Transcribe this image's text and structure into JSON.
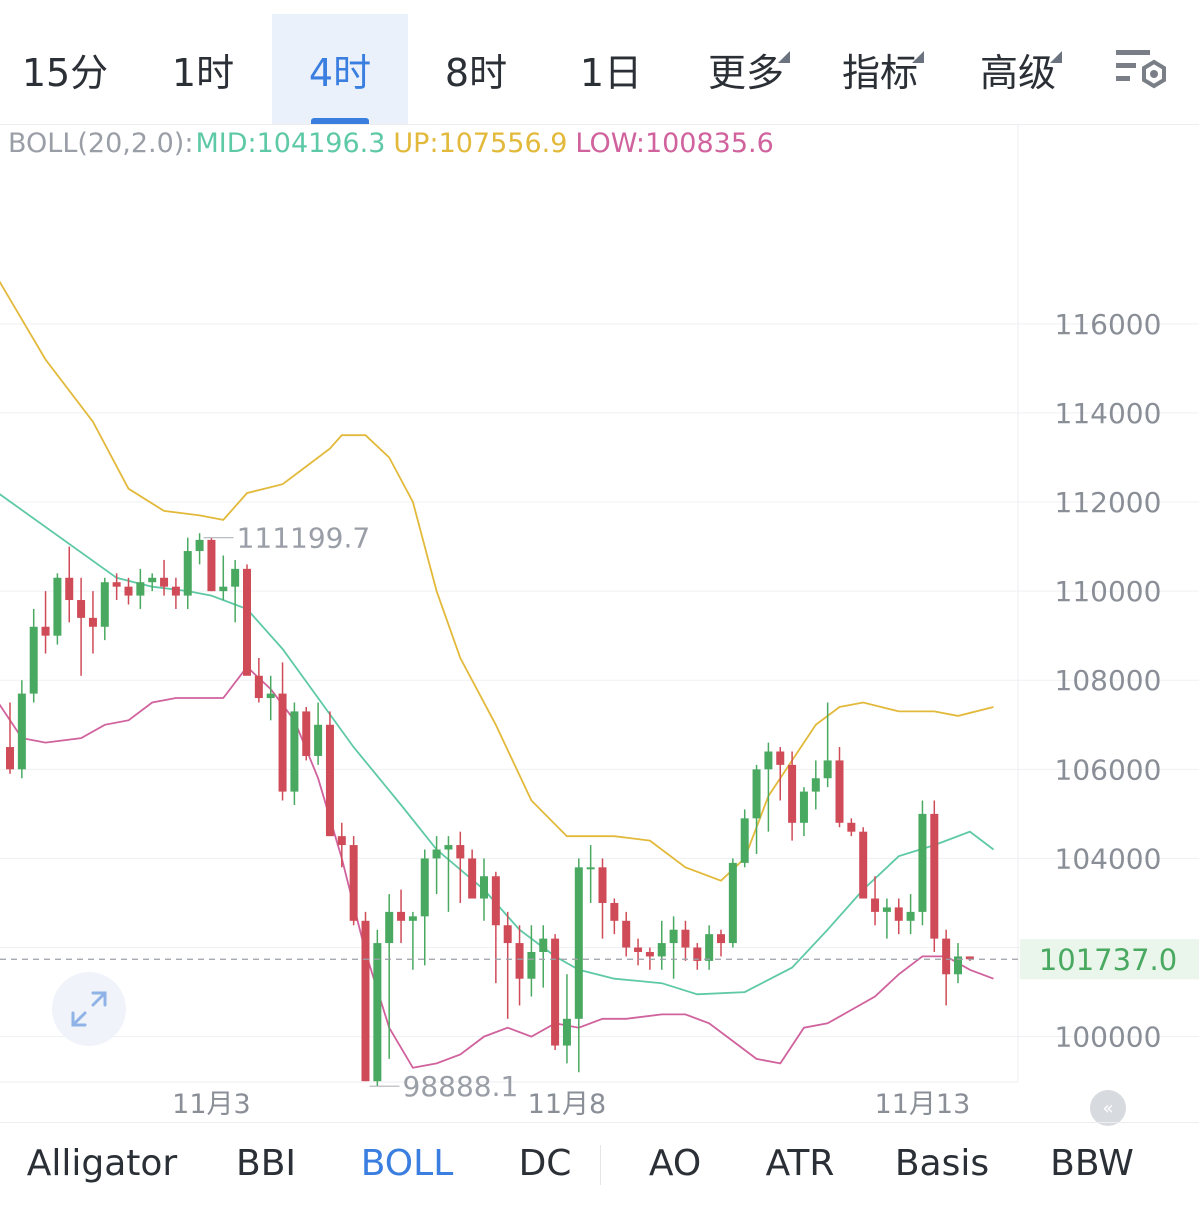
{
  "timeframe_tabs": [
    {
      "label": "15分",
      "active": false,
      "dropdown": false
    },
    {
      "label": "1时",
      "active": false,
      "dropdown": false
    },
    {
      "label": "4时",
      "active": true,
      "dropdown": false
    },
    {
      "label": "8时",
      "active": false,
      "dropdown": false
    },
    {
      "label": "1日",
      "active": false,
      "dropdown": false
    },
    {
      "label": "更多",
      "active": false,
      "dropdown": true
    },
    {
      "label": "指标",
      "active": false,
      "dropdown": true
    },
    {
      "label": "高级",
      "active": false,
      "dropdown": true
    }
  ],
  "toolbar": {
    "settings_icon": "chart-settings-icon"
  },
  "legend": {
    "name": "BOLL(20,2.0):",
    "mid": "MID:104196.3",
    "up": "UP:107556.9",
    "low": "LOW:100835.6"
  },
  "colors": {
    "up_candle": "#49a960",
    "down_candle": "#cf4b57",
    "mid": "#5ec9a6",
    "upper": "#e2b93b",
    "lower": "#d0629d",
    "active": "#3a7ee0",
    "price_tag": "#49a960"
  },
  "indicator_tabs": [
    {
      "label": "Alligator",
      "active": false
    },
    {
      "label": "BBI",
      "active": false
    },
    {
      "label": "BOLL",
      "active": true
    },
    {
      "label": "DC",
      "active": false
    },
    {
      "label": "AO",
      "active": false
    },
    {
      "label": "ATR",
      "active": false
    },
    {
      "label": "Basis",
      "active": false
    },
    {
      "label": "BBW",
      "active": false
    }
  ],
  "chart_data": {
    "type": "candlestick",
    "indicator": "BOLL(20,2.0)",
    "timeframe": "4时",
    "ylim": [
      99000,
      118600
    ],
    "y_ticks": [
      100000,
      102000,
      104000,
      106000,
      108000,
      110000,
      112000,
      114000,
      116000
    ],
    "y_tick_labels": [
      "100000",
      "",
      "104000",
      "106000",
      "108000",
      "110000",
      "112000",
      "114000",
      "116000"
    ],
    "x_labels": [
      {
        "label": "11月3",
        "index": 17
      },
      {
        "label": "11月8",
        "index": 47
      },
      {
        "label": "11月13",
        "index": 77
      }
    ],
    "current_price": 101737.0,
    "current_price_label": "101737.0",
    "annotations": [
      {
        "label": "111199.7",
        "value": 111199.7,
        "index": 16
      },
      {
        "label": "98888.1",
        "value": 98888.1,
        "index": 30
      }
    ],
    "candles": [
      [
        106500,
        107500,
        105900,
        106000
      ],
      [
        106000,
        108000,
        105800,
        107700
      ],
      [
        107700,
        109600,
        107500,
        109200
      ],
      [
        109200,
        110000,
        108600,
        109000
      ],
      [
        109000,
        110400,
        108800,
        110300
      ],
      [
        110300,
        111000,
        109300,
        109800
      ],
      [
        109800,
        110300,
        108100,
        109400
      ],
      [
        109400,
        110000,
        108600,
        109200
      ],
      [
        109200,
        110300,
        108900,
        110200
      ],
      [
        110200,
        110400,
        109800,
        110100
      ],
      [
        110100,
        110300,
        109700,
        109900
      ],
      [
        109900,
        110500,
        109600,
        110200
      ],
      [
        110200,
        110400,
        110000,
        110300
      ],
      [
        110300,
        110700,
        109900,
        110100
      ],
      [
        110100,
        110300,
        109600,
        109900
      ],
      [
        109900,
        111200,
        109600,
        110900
      ],
      [
        110900,
        111300,
        110600,
        111150
      ],
      [
        111150,
        111200,
        110000,
        110000
      ],
      [
        110000,
        110800,
        109800,
        110100
      ],
      [
        110100,
        110700,
        109300,
        110500
      ],
      [
        110500,
        110600,
        108200,
        108100
      ],
      [
        108100,
        108500,
        107500,
        107600
      ],
      [
        107600,
        108100,
        107100,
        107700
      ],
      [
        107700,
        108400,
        105300,
        105500
      ],
      [
        105500,
        107500,
        105200,
        107300
      ],
      [
        107300,
        107400,
        106200,
        106300
      ],
      [
        106300,
        107500,
        106100,
        107000
      ],
      [
        107000,
        107300,
        104500,
        104500
      ],
      [
        104500,
        104800,
        103800,
        104300
      ],
      [
        104300,
        104500,
        102500,
        102600
      ],
      [
        102600,
        102800,
        99000,
        99000
      ],
      [
        99000,
        102400,
        98888,
        102100
      ],
      [
        102100,
        103200,
        99500,
        102800
      ],
      [
        102800,
        103300,
        102100,
        102600
      ],
      [
        102600,
        102800,
        101500,
        102700
      ],
      [
        102700,
        104200,
        101600,
        104000
      ],
      [
        104000,
        104500,
        103200,
        104200
      ],
      [
        104200,
        104500,
        102800,
        104300
      ],
      [
        104300,
        104600,
        103000,
        104000
      ],
      [
        104000,
        104200,
        103100,
        103100
      ],
      [
        103100,
        104000,
        102600,
        103600
      ],
      [
        103600,
        103700,
        101200,
        102500
      ],
      [
        102500,
        102800,
        100400,
        102100
      ],
      [
        102100,
        102500,
        100700,
        101300
      ],
      [
        101300,
        102500,
        100900,
        101900
      ],
      [
        101900,
        102500,
        101100,
        102200
      ],
      [
        102200,
        102300,
        99700,
        99800
      ],
      [
        99800,
        101400,
        99400,
        100400
      ],
      [
        100400,
        104000,
        99200,
        103800
      ],
      [
        103800,
        104300,
        103000,
        103800
      ],
      [
        103800,
        104000,
        102200,
        103000
      ],
      [
        103000,
        103100,
        102300,
        102600
      ],
      [
        102600,
        102800,
        101800,
        102000
      ],
      [
        102000,
        102200,
        101600,
        101900
      ],
      [
        101900,
        102000,
        101500,
        101800
      ],
      [
        101800,
        102600,
        101500,
        102100
      ],
      [
        102100,
        102700,
        101300,
        102400
      ],
      [
        102400,
        102600,
        101700,
        102000
      ],
      [
        102000,
        102100,
        101500,
        101700
      ],
      [
        101700,
        102500,
        101500,
        102300
      ],
      [
        102300,
        102400,
        101800,
        102100
      ],
      [
        102100,
        104000,
        102000,
        103900
      ],
      [
        103900,
        105100,
        103800,
        104900
      ],
      [
        104900,
        106100,
        104100,
        106000
      ],
      [
        106000,
        106600,
        104600,
        106400
      ],
      [
        106400,
        106500,
        105300,
        106100
      ],
      [
        106100,
        106400,
        104400,
        104800
      ],
      [
        104800,
        105600,
        104500,
        105500
      ],
      [
        105500,
        106200,
        105100,
        105800
      ],
      [
        105800,
        107500,
        105600,
        106200
      ],
      [
        106200,
        106500,
        104700,
        104800
      ],
      [
        104800,
        104900,
        104500,
        104600
      ],
      [
        104600,
        104700,
        103200,
        103100
      ],
      [
        103100,
        103600,
        102500,
        102800
      ],
      [
        102800,
        103100,
        102200,
        102900
      ],
      [
        102900,
        103100,
        102300,
        102600
      ],
      [
        102600,
        103200,
        102300,
        102800
      ],
      [
        102800,
        105300,
        102500,
        105000
      ],
      [
        105000,
        105300,
        101900,
        102200
      ],
      [
        102200,
        102400,
        100700,
        101400
      ],
      [
        101400,
        102100,
        101200,
        101800
      ],
      [
        101800,
        101800,
        101700,
        101737
      ]
    ],
    "mid_line": [
      [
        -1,
        112200
      ],
      [
        9,
        110300
      ],
      [
        12,
        110100
      ],
      [
        15,
        110000
      ],
      [
        17,
        109900
      ],
      [
        20,
        109600
      ],
      [
        23,
        108700
      ],
      [
        26,
        107600
      ],
      [
        29,
        106500
      ],
      [
        33,
        105200
      ],
      [
        36,
        104200
      ],
      [
        40,
        103300
      ],
      [
        43,
        102400
      ],
      [
        46,
        101800
      ],
      [
        48,
        101500
      ],
      [
        51,
        101300
      ],
      [
        55,
        101200
      ],
      [
        58,
        100950
      ],
      [
        62,
        101000
      ],
      [
        66,
        101550
      ],
      [
        69,
        102400
      ],
      [
        72,
        103300
      ],
      [
        75,
        104050
      ],
      [
        78,
        104300
      ],
      [
        81,
        104600
      ],
      [
        83,
        104200
      ]
    ],
    "upper_line": [
      [
        -1,
        117000
      ],
      [
        3,
        115200
      ],
      [
        7,
        113800
      ],
      [
        10,
        112300
      ],
      [
        13,
        111800
      ],
      [
        16,
        111700
      ],
      [
        18,
        111600
      ],
      [
        20,
        112200
      ],
      [
        23,
        112400
      ],
      [
        25,
        112800
      ],
      [
        27,
        113200
      ],
      [
        28,
        113500
      ],
      [
        30,
        113500
      ],
      [
        32,
        113000
      ],
      [
        34,
        112000
      ],
      [
        36,
        110000
      ],
      [
        38,
        108500
      ],
      [
        41,
        107000
      ],
      [
        44,
        105300
      ],
      [
        47,
        104500
      ],
      [
        51,
        104500
      ],
      [
        54,
        104400
      ],
      [
        57,
        103800
      ],
      [
        60,
        103500
      ],
      [
        62,
        104000
      ],
      [
        64,
        105400
      ],
      [
        66,
        106200
      ],
      [
        68,
        107000
      ],
      [
        70,
        107400
      ],
      [
        72,
        107500
      ],
      [
        75,
        107300
      ],
      [
        78,
        107300
      ],
      [
        80,
        107200
      ],
      [
        83,
        107400
      ]
    ],
    "lower_line": [
      [
        -1,
        107500
      ],
      [
        1,
        106700
      ],
      [
        3,
        106600
      ],
      [
        6,
        106700
      ],
      [
        8,
        107000
      ],
      [
        10,
        107100
      ],
      [
        12,
        107500
      ],
      [
        14,
        107600
      ],
      [
        18,
        107600
      ],
      [
        20,
        108300
      ],
      [
        22,
        107800
      ],
      [
        24,
        107100
      ],
      [
        26,
        105800
      ],
      [
        28,
        104000
      ],
      [
        30,
        101900
      ],
      [
        32,
        100200
      ],
      [
        34,
        99300
      ],
      [
        36,
        99400
      ],
      [
        38,
        99600
      ],
      [
        40,
        100000
      ],
      [
        42,
        100200
      ],
      [
        44,
        100000
      ],
      [
        46,
        100300
      ],
      [
        48,
        100200
      ],
      [
        50,
        100400
      ],
      [
        52,
        100400
      ],
      [
        55,
        100500
      ],
      [
        57,
        100500
      ],
      [
        59,
        100300
      ],
      [
        61,
        99900
      ],
      [
        63,
        99500
      ],
      [
        65,
        99400
      ],
      [
        67,
        100200
      ],
      [
        69,
        100300
      ],
      [
        71,
        100600
      ],
      [
        73,
        100900
      ],
      [
        75,
        101400
      ],
      [
        77,
        101800
      ],
      [
        79,
        101800
      ],
      [
        81,
        101500
      ],
      [
        83,
        101300
      ]
    ]
  }
}
